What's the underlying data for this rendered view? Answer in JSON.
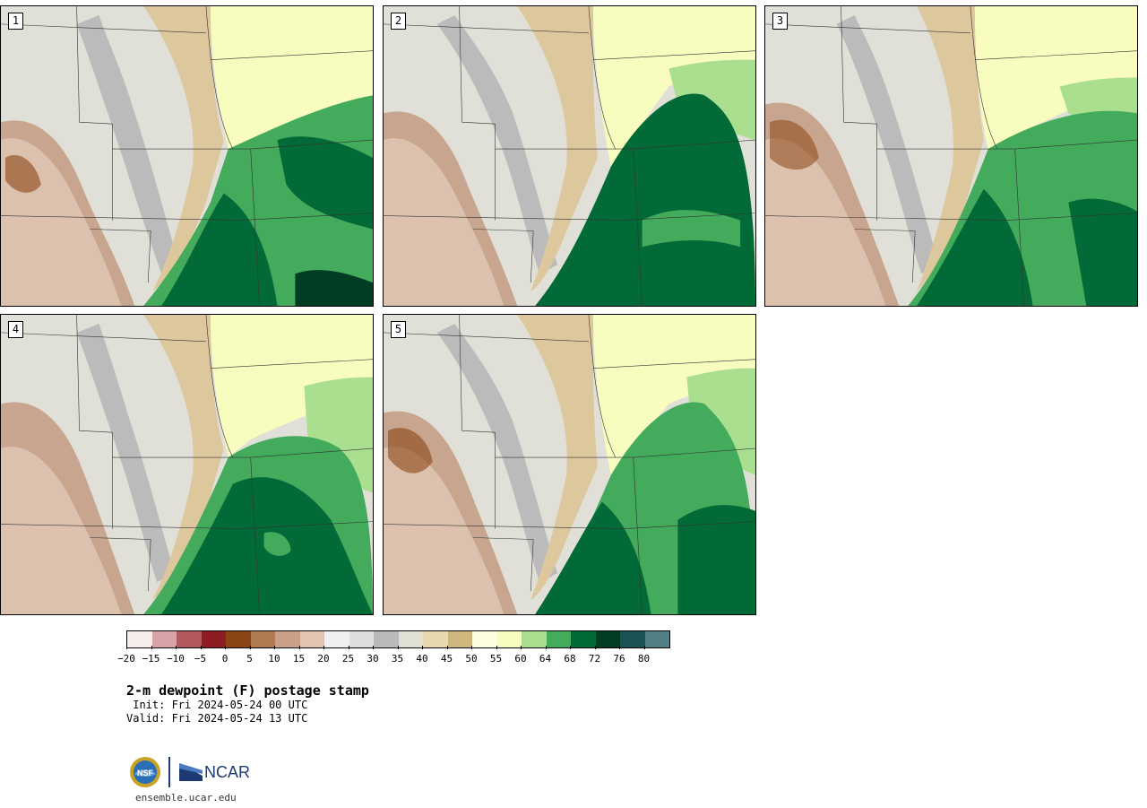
{
  "figure": {
    "title": "2-m dewpoint (F) postage stamp",
    "init": " Init: Fri 2024-05-24 00 UTC",
    "valid": "Valid: Fri 2024-05-24 13 UTC",
    "website": "ensemble.ucar.edu"
  },
  "panels": [
    {
      "label": "1"
    },
    {
      "label": "2"
    },
    {
      "label": "3"
    },
    {
      "label": "4"
    },
    {
      "label": "5"
    }
  ],
  "colorbar": {
    "unit": "F",
    "colors": [
      "#f5eceb",
      "#d8a4a8",
      "#b2595e",
      "#8d1c24",
      "#8b4514",
      "#b07a52",
      "#c99f85",
      "#e2c4b3",
      "#f0f0f0",
      "#dedede",
      "#bababa",
      "#e0e0d4",
      "#e8d8b0",
      "#cfb77e",
      "#fdfde0",
      "#f8fcbe",
      "#a9df8f",
      "#44aa5c",
      "#026a36",
      "#013d22",
      "#1d5255",
      "#527f84"
    ],
    "tick_labels": [
      "−20",
      "−15",
      "−10",
      "−5",
      "0",
      "5",
      "10",
      "15",
      "20",
      "25",
      "30",
      "35",
      "40",
      "45",
      "50",
      "55",
      "60",
      "64",
      "68",
      "72",
      "76",
      "80"
    ]
  },
  "logos": {
    "nsf": "NSF",
    "ncar": "NCAR"
  }
}
